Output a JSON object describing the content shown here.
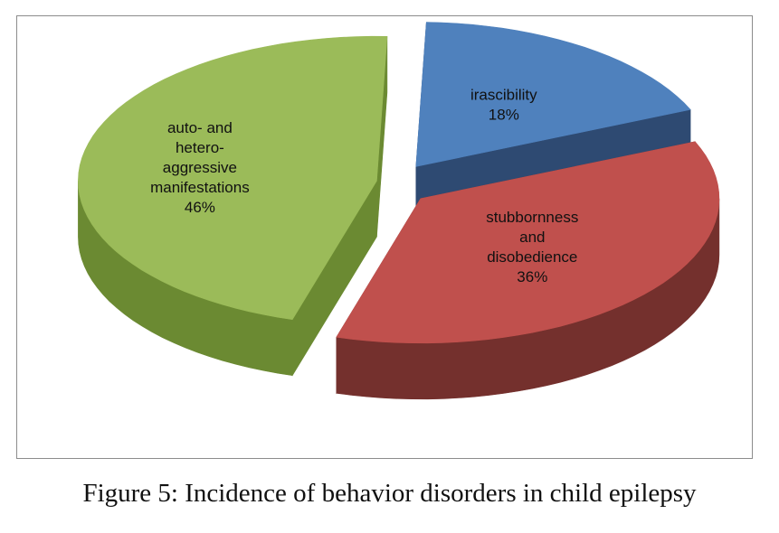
{
  "caption": "Figure 5: Incidence of behavior disorders in child epilepsy",
  "chart_data": {
    "type": "pie",
    "title": "",
    "exploded": true,
    "three_d": true,
    "slices": [
      {
        "label_lines": [
          "irascibility"
        ],
        "value": 18,
        "value_label": "18%",
        "color": "#4f81bd",
        "dark": "#2e4a72"
      },
      {
        "label_lines": [
          "stubbornness",
          "and",
          "disobedience"
        ],
        "value": 36,
        "value_label": "36%",
        "color": "#c0504d",
        "dark": "#74302d"
      },
      {
        "label_lines": [
          "auto- and",
          "hetero-",
          "aggressive",
          "manifestations"
        ],
        "value": 46,
        "value_label": "46%",
        "color": "#9bbb59",
        "dark": "#6b8a32"
      }
    ]
  }
}
